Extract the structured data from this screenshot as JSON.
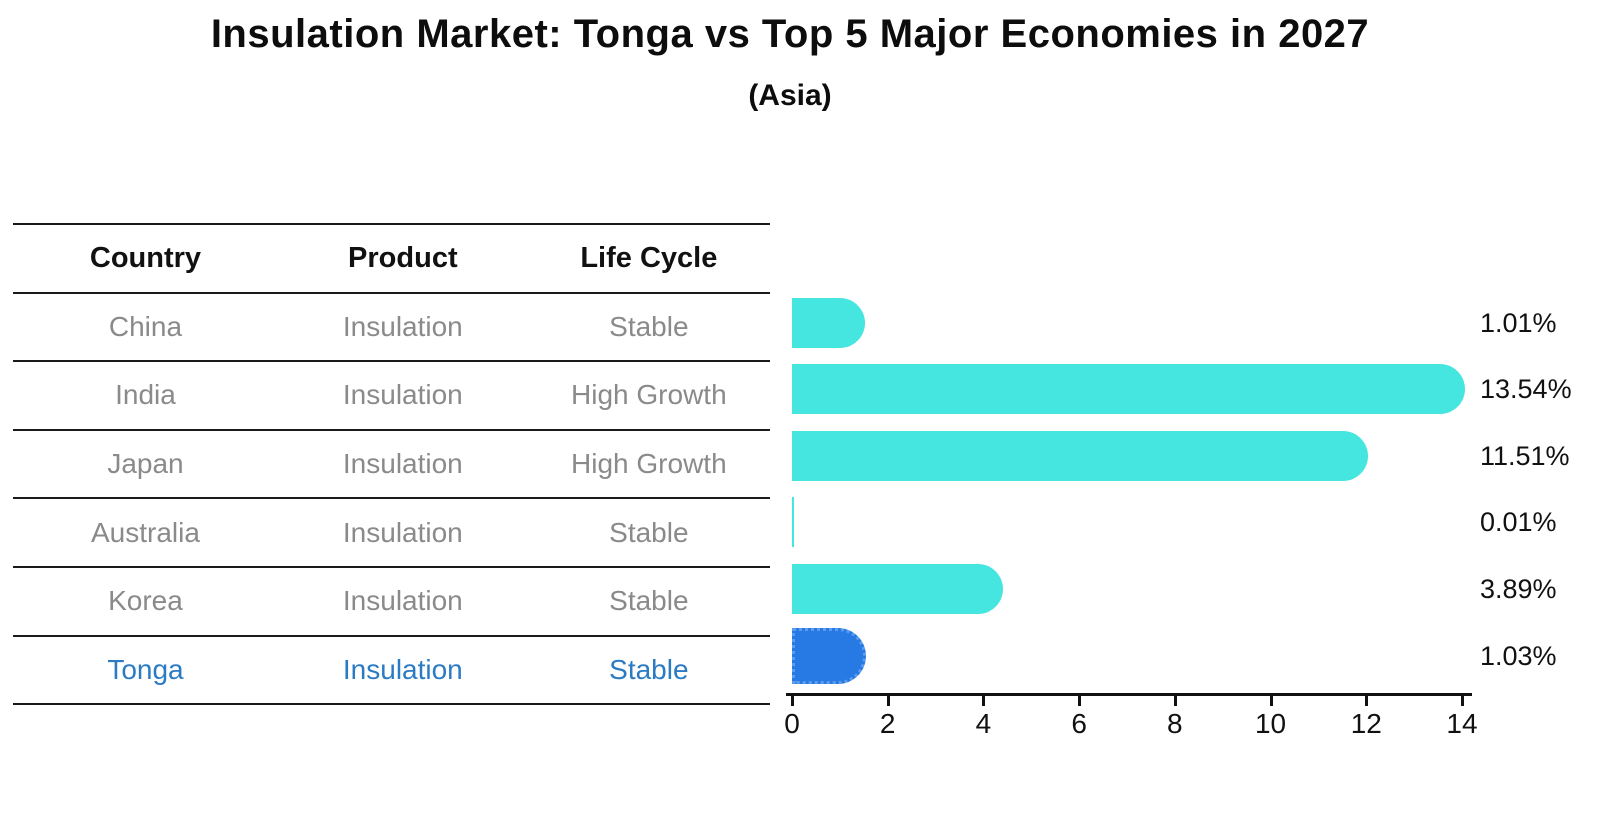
{
  "figure": {
    "title": "Insulation Market: Tonga vs Top 5 Major Economies in 2027",
    "subtitle": "(Asia)"
  },
  "table": {
    "headers": [
      "Country",
      "Product",
      "Life Cycle"
    ],
    "rows": [
      {
        "country": "China",
        "product": "Insulation",
        "life_cycle": "Stable",
        "highlight": false
      },
      {
        "country": "India",
        "product": "Insulation",
        "life_cycle": "High Growth",
        "highlight": false
      },
      {
        "country": "Japan",
        "product": "Insulation",
        "life_cycle": "High Growth",
        "highlight": false
      },
      {
        "country": "Australia",
        "product": "Insulation",
        "life_cycle": "Stable",
        "highlight": false
      },
      {
        "country": "Korea",
        "product": "Insulation",
        "life_cycle": "Stable",
        "highlight": false
      },
      {
        "country": "Tonga",
        "product": "Insulation",
        "life_cycle": "Stable",
        "highlight": true
      }
    ]
  },
  "chart_data": {
    "type": "bar",
    "orientation": "horizontal",
    "title": "Insulation Market: Tonga vs Top 5 Major Economies in 2027",
    "subtitle": "(Asia)",
    "categories": [
      "China",
      "India",
      "Japan",
      "Australia",
      "Korea",
      "Tonga"
    ],
    "values": [
      1.01,
      13.54,
      11.51,
      0.01,
      3.89,
      1.03
    ],
    "labels": [
      "1.01%",
      "13.54%",
      "11.51%",
      "0.01%",
      "3.89%",
      "1.03%"
    ],
    "highlight_category": "Tonga",
    "xlabel": "",
    "ylabel": "",
    "xlim": [
      0,
      14
    ],
    "xticks": [
      0,
      2,
      4,
      6,
      8,
      10,
      12,
      14
    ],
    "grid": false,
    "legend": false,
    "colors": {
      "bar_default": "#45e6e0",
      "bar_highlight": "#2779e3",
      "highlight_text": "#2b7bc4",
      "table_text": "#8a8a8a",
      "heading_text": "#111111"
    }
  }
}
